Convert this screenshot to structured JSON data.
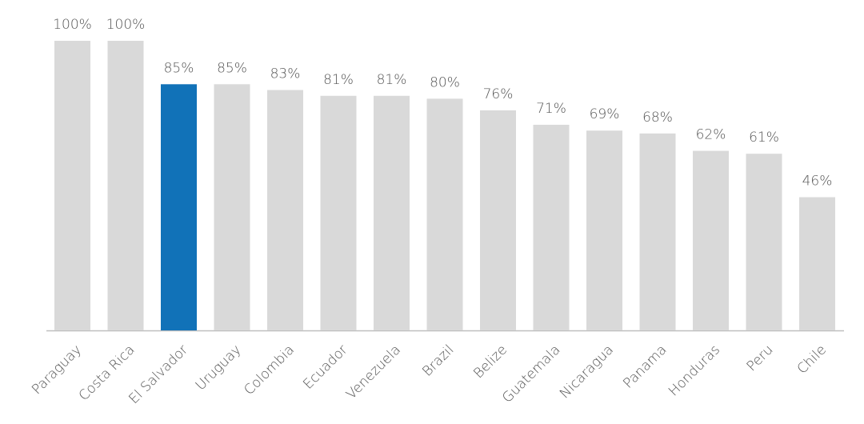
{
  "chart_data": {
    "type": "bar",
    "categories": [
      "Paraguay",
      "Costa Rica",
      "El Salvador",
      "Uruguay",
      "Colombia",
      "Ecuador",
      "Venezuela",
      "Brazil",
      "Belize",
      "Guatemala",
      "Nicaragua",
      "Panama",
      "Honduras",
      "Peru",
      "Chile"
    ],
    "values": [
      100,
      100,
      85,
      85,
      83,
      81,
      81,
      80,
      76,
      71,
      69,
      68,
      62,
      61,
      46
    ],
    "value_labels": [
      "100%",
      "100%",
      "85%",
      "85%",
      "83%",
      "81%",
      "81%",
      "80%",
      "76%",
      "71%",
      "69%",
      "68%",
      "62%",
      "61%",
      "46%"
    ],
    "colors": [
      "#d9d9d9",
      "#d9d9d9",
      "#1172b8",
      "#d9d9d9",
      "#d9d9d9",
      "#d9d9d9",
      "#d9d9d9",
      "#d9d9d9",
      "#d9d9d9",
      "#d9d9d9",
      "#d9d9d9",
      "#d9d9d9",
      "#d9d9d9",
      "#d9d9d9",
      "#d9d9d9"
    ],
    "ylim": [
      0,
      100
    ]
  }
}
